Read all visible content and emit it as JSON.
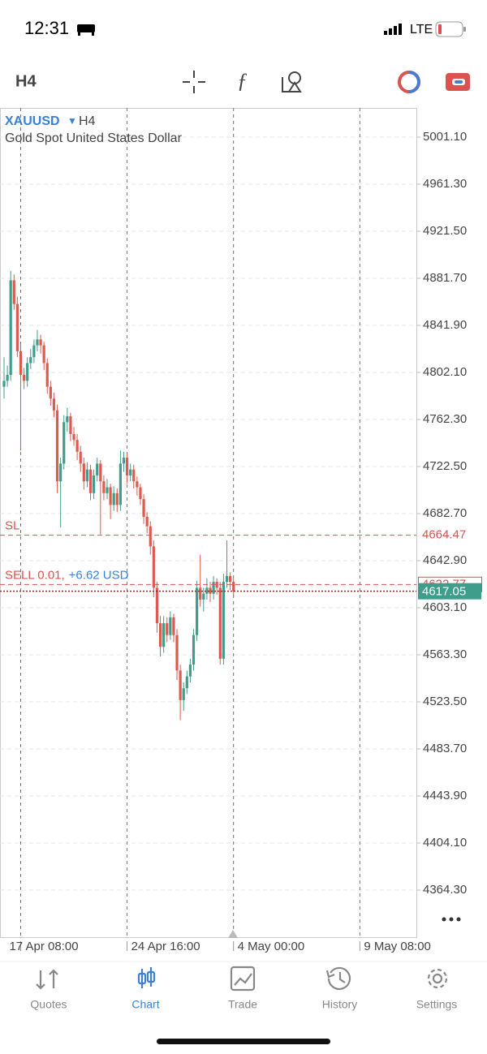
{
  "status_bar": {
    "time": "12:31",
    "network": "LTE"
  },
  "toolbar": {
    "timeframe": "H4"
  },
  "chart_data": {
    "type": "candlestick",
    "symbol": "XAUUSD",
    "timeframe": "H4",
    "description": "Gold Spot United States Dollar",
    "colors": {
      "up": "#3e9d8b",
      "down": "#dd5a4f",
      "level": "#d9534f",
      "price": "#3e9d8b"
    },
    "ylim": [
      4324.5,
      5025.8
    ],
    "yticks": [
      {
        "value": 5001.1,
        "label": "5001.10"
      },
      {
        "value": 4961.3,
        "label": "4961.30"
      },
      {
        "value": 4921.5,
        "label": "4921.50"
      },
      {
        "value": 4881.7,
        "label": "4881.70"
      },
      {
        "value": 4841.9,
        "label": "4841.90"
      },
      {
        "value": 4802.1,
        "label": "4802.10"
      },
      {
        "value": 4762.3,
        "label": "4762.30"
      },
      {
        "value": 4722.5,
        "label": "4722.50"
      },
      {
        "value": 4682.7,
        "label": "4682.70"
      },
      {
        "value": 4642.9,
        "label": "4642.90"
      },
      {
        "value": 4603.1,
        "label": "4603.10"
      },
      {
        "value": 4563.3,
        "label": "4563.30"
      },
      {
        "value": 4523.5,
        "label": "4523.50"
      },
      {
        "value": 4483.7,
        "label": "4483.70"
      },
      {
        "value": 4443.9,
        "label": "4443.90"
      },
      {
        "value": 4404.1,
        "label": "4404.10"
      },
      {
        "value": 4364.3,
        "label": "4364.30"
      }
    ],
    "categories": [
      null,
      null,
      null,
      null,
      null,
      "17 Apr 08:00",
      null,
      null,
      null,
      null,
      null,
      null,
      null,
      null,
      null,
      null,
      null,
      null,
      null,
      null,
      null,
      null,
      null,
      null,
      null,
      null,
      null,
      null,
      null,
      null,
      null,
      null,
      null,
      null,
      null,
      null,
      null,
      "24 Apr 16:00",
      null,
      null,
      null,
      null,
      null,
      null,
      null,
      null,
      null,
      null,
      null,
      null,
      null,
      null,
      null,
      null,
      null,
      null,
      null,
      null,
      null,
      null,
      null,
      null,
      null,
      null,
      null,
      null,
      null,
      null,
      null,
      "4 May 00:00",
      null,
      null,
      null,
      null,
      null,
      null,
      null,
      null,
      null,
      null,
      null,
      null,
      null,
      null,
      null,
      null,
      null,
      null,
      null,
      null,
      null,
      null,
      null,
      null,
      null,
      null,
      null,
      null,
      null,
      null,
      null,
      null,
      null,
      null,
      null,
      null,
      null,
      "9 May 08:00",
      null,
      null,
      null,
      null,
      null,
      null,
      null,
      null,
      null,
      null,
      null,
      null,
      null,
      null,
      null,
      null
    ],
    "candles": [
      [
        4790,
        4815,
        4780,
        4795
      ],
      [
        4795,
        4808,
        4790,
        4800
      ],
      [
        4800,
        4888,
        4795,
        4880
      ],
      [
        4880,
        4885,
        4855,
        4860
      ],
      [
        4860,
        4866,
        4815,
        4820
      ],
      [
        4820,
        4826,
        4736,
        4800
      ],
      [
        4800,
        4806,
        4788,
        4795
      ],
      [
        4795,
        4815,
        4790,
        4810
      ],
      [
        4810,
        4822,
        4805,
        4815
      ],
      [
        4815,
        4830,
        4810,
        4825
      ],
      [
        4825,
        4838,
        4820,
        4830
      ],
      [
        4830,
        4834,
        4818,
        4825
      ],
      [
        4825,
        4828,
        4804,
        4810
      ],
      [
        4810,
        4814,
        4784,
        4790
      ],
      [
        4790,
        4795,
        4774,
        4780
      ],
      [
        4780,
        4785,
        4764,
        4770
      ],
      [
        4770,
        4775,
        4700,
        4710
      ],
      [
        4710,
        4730,
        4671,
        4725
      ],
      [
        4725,
        4766,
        4720,
        4760
      ],
      [
        4760,
        4772,
        4752,
        4765
      ],
      [
        4765,
        4768,
        4744,
        4750
      ],
      [
        4750,
        4756,
        4740,
        4745
      ],
      [
        4745,
        4750,
        4728,
        4735
      ],
      [
        4735,
        4740,
        4718,
        4725
      ],
      [
        4725,
        4730,
        4703,
        4710
      ],
      [
        4710,
        4726,
        4705,
        4720
      ],
      [
        4720,
        4724,
        4694,
        4700
      ],
      [
        4700,
        4720,
        4695,
        4715
      ],
      [
        4715,
        4730,
        4710,
        4725
      ],
      [
        4725,
        4728,
        4665,
        4710
      ],
      [
        4710,
        4715,
        4694,
        4700
      ],
      [
        4700,
        4712,
        4695,
        4705
      ],
      [
        4705,
        4708,
        4678,
        4690
      ],
      [
        4690,
        4706,
        4685,
        4700
      ],
      [
        4700,
        4704,
        4684,
        4690
      ],
      [
        4690,
        4736,
        4685,
        4725
      ],
      [
        4725,
        4735,
        4718,
        4730
      ],
      [
        4730,
        4734,
        4708,
        4715
      ],
      [
        4715,
        4725,
        4710,
        4720
      ],
      [
        4720,
        4724,
        4704,
        4710
      ],
      [
        4710,
        4714,
        4698,
        4705
      ],
      [
        4705,
        4708,
        4690,
        4695
      ],
      [
        4695,
        4699,
        4674,
        4680
      ],
      [
        4680,
        4684,
        4666,
        4672
      ],
      [
        4672,
        4676,
        4648,
        4655
      ],
      [
        4655,
        4660,
        4612,
        4620
      ],
      [
        4620,
        4625,
        4582,
        4590
      ],
      [
        4590,
        4596,
        4562,
        4570
      ],
      [
        4570,
        4596,
        4565,
        4590
      ],
      [
        4590,
        4595,
        4574,
        4580
      ],
      [
        4580,
        4600,
        4576,
        4595
      ],
      [
        4595,
        4598,
        4574,
        4580
      ],
      [
        4580,
        4585,
        4542,
        4550
      ],
      [
        4550,
        4555,
        4508,
        4525
      ],
      [
        4525,
        4540,
        4516,
        4535
      ],
      [
        4535,
        4550,
        4530,
        4545
      ],
      [
        4545,
        4560,
        4540,
        4555
      ],
      [
        4555,
        4585,
        4550,
        4580
      ],
      [
        4580,
        4626,
        4575,
        4620
      ],
      [
        4620,
        4648,
        4604,
        4610
      ],
      [
        4610,
        4620,
        4600,
        4615
      ],
      [
        4615,
        4628,
        4610,
        4620
      ],
      [
        4620,
        4625,
        4608,
        4615
      ],
      [
        4615,
        4630,
        4610,
        4625
      ],
      [
        4625,
        4628,
        4614,
        4620
      ],
      [
        4620,
        4625,
        4555,
        4560
      ],
      [
        4560,
        4632,
        4555,
        4625
      ],
      [
        4625,
        4660,
        4620,
        4630
      ],
      [
        4630,
        4633,
        4618,
        4625
      ],
      [
        4625,
        4628,
        4612,
        4617.05
      ],
      null,
      null,
      null,
      null,
      null,
      null,
      null,
      null,
      null,
      null,
      null,
      null,
      null,
      null,
      null,
      null,
      null,
      null,
      null,
      null,
      null,
      null,
      null,
      null,
      null,
      null,
      null,
      null,
      null,
      null,
      null,
      null,
      null,
      null,
      null,
      null,
      null,
      null,
      null,
      null,
      null,
      null,
      null,
      null,
      null,
      null,
      null,
      null,
      null,
      null,
      null,
      null,
      null,
      null
    ],
    "sl": {
      "name": "SL",
      "value": 4664.47,
      "label": "4664.47"
    },
    "position": {
      "side": "SELL 0.01,",
      "profit": "+6.62 USD",
      "value": 4622.77,
      "label": "4622.77"
    },
    "price": {
      "value": 4617.05,
      "label": "4617.05"
    }
  },
  "tab_bar": {
    "tabs": [
      {
        "label": "Quotes"
      },
      {
        "label": "Chart"
      },
      {
        "label": "Trade"
      },
      {
        "label": "History"
      },
      {
        "label": "Settings"
      }
    ],
    "active": 1
  }
}
